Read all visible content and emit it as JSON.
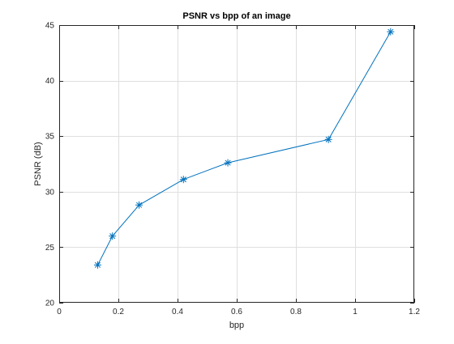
{
  "chart_data": {
    "type": "line",
    "title": "PSNR vs bpp of an image",
    "xlabel": "bpp",
    "ylabel": "PSNR (dB)",
    "xlim": [
      0,
      1.2
    ],
    "ylim": [
      20,
      45
    ],
    "x_ticks": [
      0,
      0.2,
      0.4,
      0.6,
      0.8,
      1,
      1.2
    ],
    "x_tick_labels": [
      "0",
      "0.2",
      "0.4",
      "0.6",
      "0.8",
      "1",
      "1.2"
    ],
    "y_ticks": [
      20,
      25,
      30,
      35,
      40,
      45
    ],
    "y_tick_labels": [
      "20",
      "25",
      "30",
      "35",
      "40",
      "45"
    ],
    "grid": true,
    "marker": "asterisk",
    "series": [
      {
        "color": "#0072bd",
        "x": [
          0.13,
          0.18,
          0.27,
          0.42,
          0.57,
          0.91,
          1.12
        ],
        "y": [
          23.4,
          26.0,
          28.8,
          31.1,
          32.6,
          34.7,
          44.4
        ]
      }
    ]
  }
}
